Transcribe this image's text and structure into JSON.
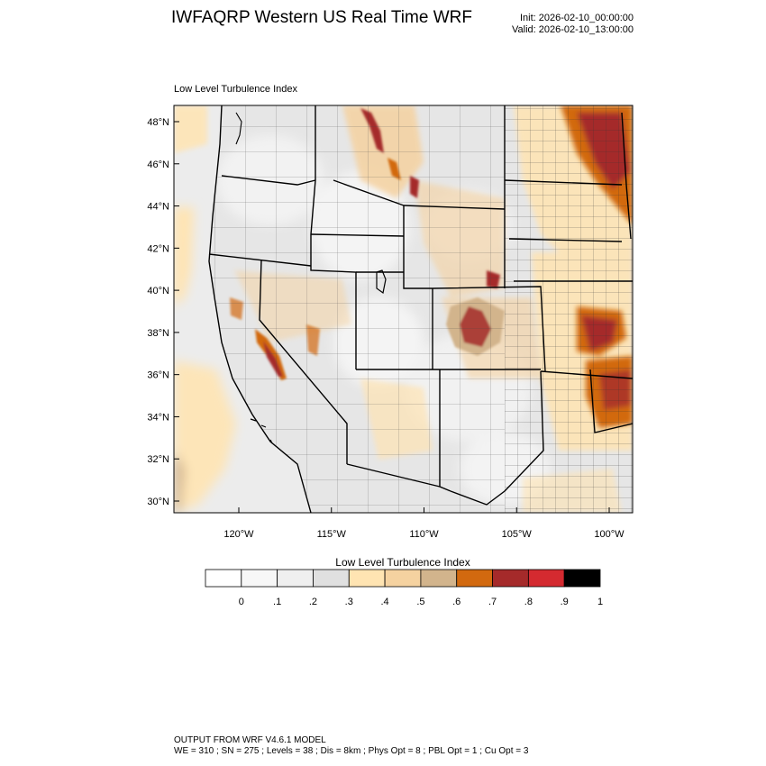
{
  "header": {
    "title": "IWFAQRP Western US Real Time WRF",
    "init": "Init: 2026-02-10_00:00:00",
    "valid": "Valid: 2026-02-10_13:00:00"
  },
  "map": {
    "subtitle": "Low Level Turbulence Index",
    "lat_ticks": [
      {
        "value": 48,
        "label": "48°N"
      },
      {
        "value": 46,
        "label": "46°N"
      },
      {
        "value": 44,
        "label": "44°N"
      },
      {
        "value": 42,
        "label": "42°N"
      },
      {
        "value": 40,
        "label": "40°N"
      },
      {
        "value": 38,
        "label": "38°N"
      },
      {
        "value": 36,
        "label": "36°N"
      },
      {
        "value": 34,
        "label": "34°N"
      },
      {
        "value": 32,
        "label": "32°N"
      },
      {
        "value": 30,
        "label": "30°N"
      }
    ],
    "lon_ticks": [
      {
        "value": -120,
        "label": "120°W"
      },
      {
        "value": -115,
        "label": "115°W"
      },
      {
        "value": -110,
        "label": "110°W"
      },
      {
        "value": -105,
        "label": "105°W"
      },
      {
        "value": -100,
        "label": "100°W"
      }
    ],
    "colors": {
      "background_low": "#e4e4e4",
      "ocean": "#ececec"
    },
    "high_regions": [
      {
        "name": "northern-plains",
        "level": 0.8
      },
      {
        "name": "southern-plains",
        "level": 0.8
      },
      {
        "name": "kansas",
        "level": 0.8
      },
      {
        "name": "sierra-nevada",
        "level": 0.8
      },
      {
        "name": "colorado-rockies",
        "level": 0.8
      },
      {
        "name": "northern-rockies",
        "level": 0.8
      }
    ]
  },
  "colorbar": {
    "title": "Low Level Turbulence Index",
    "colors": [
      "#ffffff",
      "#f7f7f7",
      "#efefef",
      "#e0e0e0",
      "#ffe4b2",
      "#f5d2a0",
      "#d2b48c",
      "#d2690f",
      "#a52a2a",
      "#d42a30",
      "#000000"
    ],
    "labels": [
      "0",
      ".1",
      ".2",
      ".3",
      ".4",
      ".5",
      ".6",
      ".7",
      ".8",
      ".9",
      "1"
    ]
  },
  "footer": {
    "line1": "OUTPUT FROM WRF V4.6.1 MODEL",
    "line2": "WE = 310 ; SN = 275 ; Levels = 38 ; Dis = 8km ; Phys Opt = 8 ; PBL Opt = 1 ; Cu Opt = 3"
  }
}
